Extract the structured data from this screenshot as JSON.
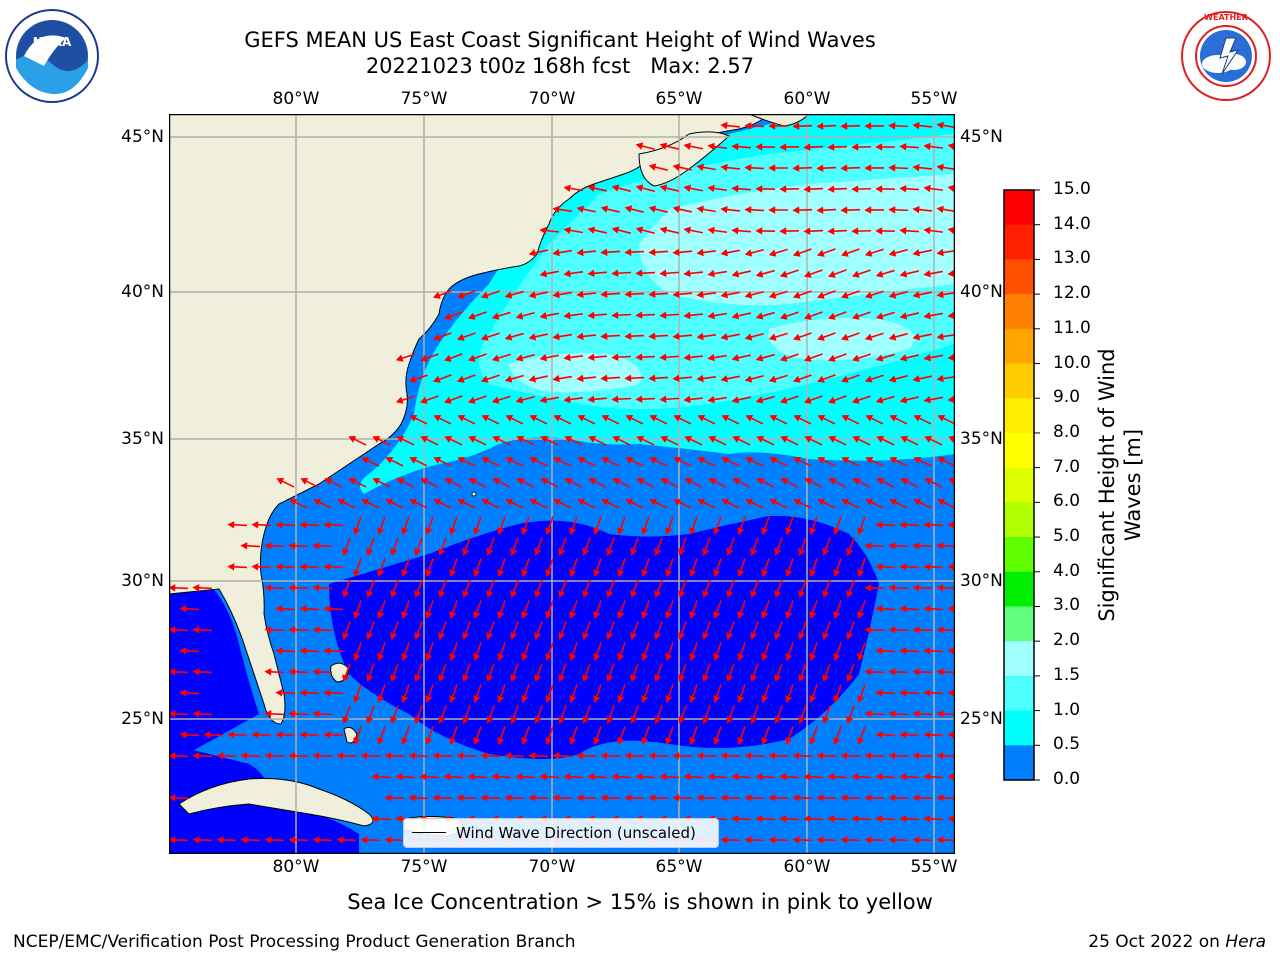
{
  "title": {
    "line1": "GEFS MEAN US East Coast Significant Height of Wind Waves",
    "line2": "20221023 t00z 168h fcst   Max: 2.57"
  },
  "logos": {
    "left": "NOAA",
    "right": "NATIONAL WEATHER SERVICE"
  },
  "map": {
    "lon_labels": [
      "80°W",
      "75°W",
      "70°W",
      "65°W",
      "60°W",
      "55°W"
    ],
    "lat_labels": [
      "45°N",
      "40°N",
      "35°N",
      "30°N",
      "25°N"
    ],
    "legend_label": "Wind Wave Direction (unscaled)",
    "colors": {
      "land": "#efefdc",
      "sea_0_0.5": "#0000ff",
      "sea_0.5_1.0": "#0080ff",
      "sea_1.0_1.5": "#00ffff",
      "sea_1.5_2.0": "#4dffff",
      "sea_2.0_3.0": "#a0ffff",
      "arrow": "#ff0000"
    }
  },
  "colorbar": {
    "label": "Significant Height of Wind Waves [m]",
    "ticks": [
      "15.0",
      "14.0",
      "13.0",
      "12.0",
      "11.0",
      "10.0",
      "9.0",
      "8.0",
      "7.0",
      "6.0",
      "5.0",
      "4.0",
      "3.0",
      "2.0",
      "1.5",
      "1.0",
      "0.5",
      "0.0"
    ],
    "colors": [
      "#ff0000",
      "#ff2000",
      "#ff5000",
      "#ff8000",
      "#ffa500",
      "#ffcc00",
      "#ffee00",
      "#ffff00",
      "#ddff00",
      "#b0ff00",
      "#60ff00",
      "#00ee00",
      "#60ff80",
      "#a0ffff",
      "#4dffff",
      "#00ffff",
      "#0080ff",
      "#0000ff"
    ]
  },
  "footer": {
    "note": "Sea Ice Concentration > 15% is shown in pink to yellow",
    "left": "NCEP/EMC/Verification Post Processing Product Generation Branch",
    "right_prefix": "25 Oct 2022 on ",
    "right_italic": "Hera"
  }
}
